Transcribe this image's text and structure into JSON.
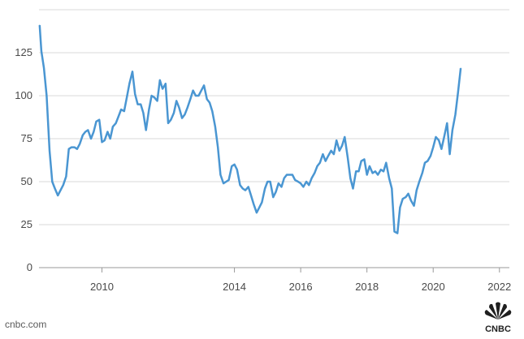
{
  "source": "cnbc.com",
  "brand": {
    "name": "CNBC"
  },
  "colors": {
    "line": "#4a96d2",
    "grid": "#d9d9d9",
    "text": "#4a4a4a"
  },
  "chart_data": {
    "type": "line",
    "title": "",
    "xlabel": "",
    "ylabel": "",
    "grid": true,
    "xlim": [
      2008.1,
      2022.3
    ],
    "ylim": [
      0,
      150
    ],
    "y_ticks": [
      0,
      25,
      50,
      75,
      100,
      125
    ],
    "x_ticks": [
      2010,
      2014,
      2016,
      2018,
      2020,
      2022
    ],
    "series": [
      {
        "points": [
          [
            2008.12,
            141
          ],
          [
            2008.17,
            126
          ],
          [
            2008.25,
            116
          ],
          [
            2008.33,
            100
          ],
          [
            2008.42,
            68
          ],
          [
            2008.5,
            50
          ],
          [
            2008.58,
            46
          ],
          [
            2008.67,
            42
          ],
          [
            2008.75,
            45
          ],
          [
            2008.83,
            48
          ],
          [
            2008.92,
            53
          ],
          [
            2009.0,
            69
          ],
          [
            2009.08,
            70
          ],
          [
            2009.17,
            70
          ],
          [
            2009.25,
            69
          ],
          [
            2009.33,
            72
          ],
          [
            2009.42,
            77
          ],
          [
            2009.5,
            79
          ],
          [
            2009.58,
            80
          ],
          [
            2009.67,
            75
          ],
          [
            2009.75,
            79
          ],
          [
            2009.83,
            85
          ],
          [
            2009.92,
            86
          ],
          [
            2010.0,
            73
          ],
          [
            2010.08,
            74
          ],
          [
            2010.17,
            79
          ],
          [
            2010.25,
            75
          ],
          [
            2010.33,
            82
          ],
          [
            2010.42,
            84
          ],
          [
            2010.5,
            88
          ],
          [
            2010.58,
            92
          ],
          [
            2010.67,
            91
          ],
          [
            2010.75,
            99
          ],
          [
            2010.83,
            107
          ],
          [
            2010.92,
            114
          ],
          [
            2011.0,
            101
          ],
          [
            2011.08,
            95
          ],
          [
            2011.17,
            95
          ],
          [
            2011.25,
            90
          ],
          [
            2011.33,
            80
          ],
          [
            2011.42,
            92
          ],
          [
            2011.5,
            100
          ],
          [
            2011.58,
            99
          ],
          [
            2011.67,
            97
          ],
          [
            2011.75,
            109
          ],
          [
            2011.83,
            104
          ],
          [
            2011.92,
            107
          ],
          [
            2012.0,
            84
          ],
          [
            2012.08,
            86
          ],
          [
            2012.17,
            90
          ],
          [
            2012.25,
            97
          ],
          [
            2012.33,
            93
          ],
          [
            2012.42,
            87
          ],
          [
            2012.5,
            89
          ],
          [
            2012.58,
            93
          ],
          [
            2012.67,
            98
          ],
          [
            2012.75,
            103
          ],
          [
            2012.83,
            100
          ],
          [
            2012.92,
            100
          ],
          [
            2013.0,
            103
          ],
          [
            2013.08,
            106
          ],
          [
            2013.17,
            98
          ],
          [
            2013.25,
            96
          ],
          [
            2013.33,
            91
          ],
          [
            2013.42,
            82
          ],
          [
            2013.5,
            70
          ],
          [
            2013.58,
            54
          ],
          [
            2013.67,
            49
          ],
          [
            2013.75,
            50
          ],
          [
            2013.83,
            51
          ],
          [
            2013.92,
            59
          ],
          [
            2014.0,
            60
          ],
          [
            2014.08,
            57
          ],
          [
            2014.17,
            48
          ],
          [
            2014.25,
            46
          ],
          [
            2014.33,
            45
          ],
          [
            2014.42,
            47
          ],
          [
            2014.5,
            42
          ],
          [
            2014.58,
            37
          ],
          [
            2014.67,
            32
          ],
          [
            2014.75,
            35
          ],
          [
            2014.83,
            38
          ],
          [
            2014.92,
            46
          ],
          [
            2015.0,
            50
          ],
          [
            2015.08,
            50
          ],
          [
            2015.17,
            41
          ],
          [
            2015.25,
            44
          ],
          [
            2015.33,
            49
          ],
          [
            2015.42,
            47
          ],
          [
            2015.5,
            52
          ],
          [
            2015.58,
            54
          ],
          [
            2015.67,
            54
          ],
          [
            2015.75,
            54
          ],
          [
            2015.83,
            51
          ],
          [
            2015.92,
            50
          ],
          [
            2016.0,
            49
          ],
          [
            2016.08,
            47
          ],
          [
            2016.17,
            50
          ],
          [
            2016.25,
            48
          ],
          [
            2016.33,
            52
          ],
          [
            2016.42,
            55
          ],
          [
            2016.5,
            59
          ],
          [
            2016.58,
            61
          ],
          [
            2016.67,
            66
          ],
          [
            2016.75,
            62
          ],
          [
            2016.83,
            65
          ],
          [
            2016.92,
            68
          ],
          [
            2017.0,
            66
          ],
          [
            2017.08,
            74
          ],
          [
            2017.17,
            68
          ],
          [
            2017.25,
            71
          ],
          [
            2017.33,
            76
          ],
          [
            2017.42,
            64
          ],
          [
            2017.5,
            52
          ],
          [
            2017.58,
            46
          ],
          [
            2017.67,
            56
          ],
          [
            2017.75,
            56
          ],
          [
            2017.83,
            62
          ],
          [
            2017.92,
            63
          ],
          [
            2018.0,
            54
          ],
          [
            2018.08,
            59
          ],
          [
            2018.17,
            55
          ],
          [
            2018.25,
            56
          ],
          [
            2018.33,
            54
          ],
          [
            2018.42,
            57
          ],
          [
            2018.5,
            56
          ],
          [
            2018.58,
            61
          ],
          [
            2018.67,
            52
          ],
          [
            2018.75,
            46
          ],
          [
            2018.83,
            21
          ],
          [
            2018.92,
            20
          ],
          [
            2019.0,
            35
          ],
          [
            2019.08,
            40
          ],
          [
            2019.17,
            41
          ],
          [
            2019.25,
            43
          ],
          [
            2019.33,
            39
          ],
          [
            2019.42,
            36
          ],
          [
            2019.5,
            45
          ],
          [
            2019.58,
            50
          ],
          [
            2019.67,
            55
          ],
          [
            2019.75,
            61
          ],
          [
            2019.83,
            62
          ],
          [
            2019.92,
            65
          ],
          [
            2020.0,
            70
          ],
          [
            2020.08,
            76
          ],
          [
            2020.17,
            74
          ],
          [
            2020.25,
            69
          ],
          [
            2020.33,
            76
          ],
          [
            2020.42,
            84
          ],
          [
            2020.5,
            66
          ],
          [
            2020.58,
            80
          ],
          [
            2020.67,
            89
          ],
          [
            2020.75,
            102
          ],
          [
            2020.83,
            116
          ]
        ]
      }
    ]
  }
}
